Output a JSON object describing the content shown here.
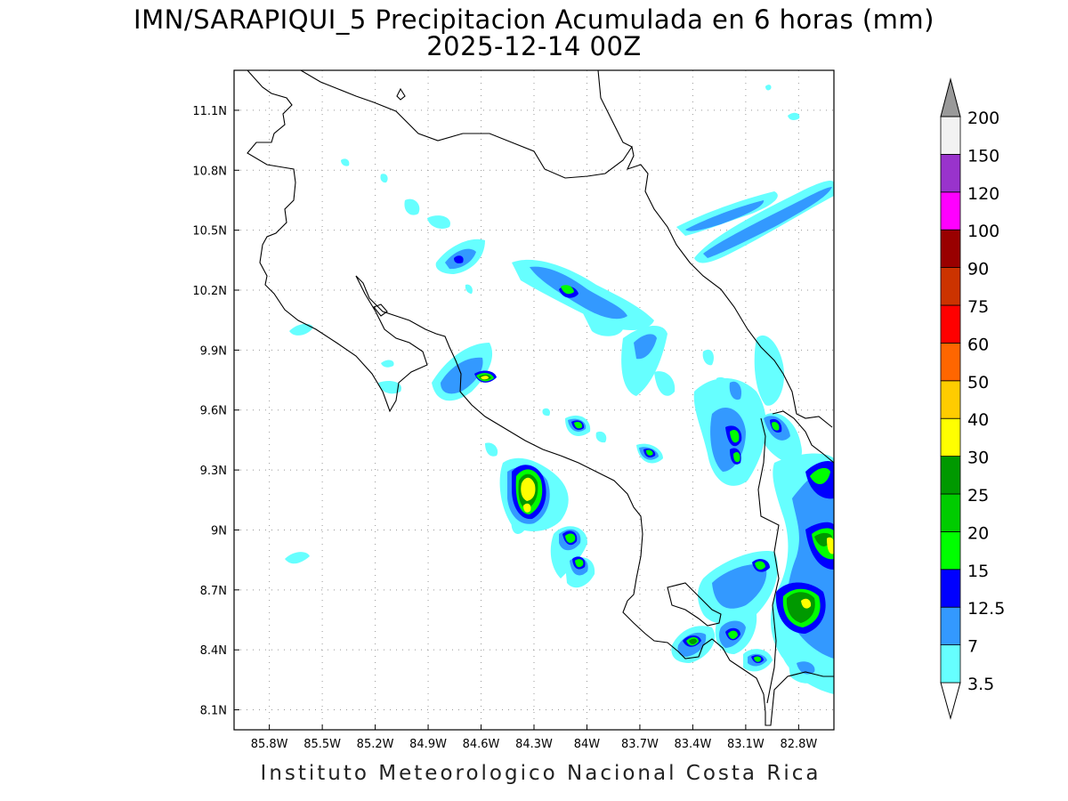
{
  "title": {
    "line1": "IMN/SARAPIQUI_5 Precipitacion Acumulada en 6 horas (mm)",
    "line2": "2025-12-14 00Z"
  },
  "footer": "Instituto Meteorologico Nacional Costa Rica",
  "map": {
    "lon_range": [
      -86.0,
      -82.6
    ],
    "lat_range": [
      8.0,
      11.3
    ],
    "x_ticks": [
      {
        "value": -85.8,
        "label": "85.8W"
      },
      {
        "value": -85.5,
        "label": "85.5W"
      },
      {
        "value": -85.2,
        "label": "85.2W"
      },
      {
        "value": -84.9,
        "label": "84.9W"
      },
      {
        "value": -84.6,
        "label": "84.6W"
      },
      {
        "value": -84.3,
        "label": "84.3W"
      },
      {
        "value": -84.0,
        "label": "84W"
      },
      {
        "value": -83.7,
        "label": "83.7W"
      },
      {
        "value": -83.4,
        "label": "83.4W"
      },
      {
        "value": -83.1,
        "label": "83.1W"
      },
      {
        "value": -82.8,
        "label": "82.8W"
      }
    ],
    "y_ticks": [
      {
        "value": 8.1,
        "label": "8.1N"
      },
      {
        "value": 8.4,
        "label": "8.4N"
      },
      {
        "value": 8.7,
        "label": "8.7N"
      },
      {
        "value": 9.0,
        "label": "9N"
      },
      {
        "value": 9.3,
        "label": "9.3N"
      },
      {
        "value": 9.6,
        "label": "9.6N"
      },
      {
        "value": 9.9,
        "label": "9.9N"
      },
      {
        "value": 10.2,
        "label": "10.2N"
      },
      {
        "value": 10.5,
        "label": "10.5N"
      },
      {
        "value": 10.8,
        "label": "10.8N"
      },
      {
        "value": 11.1,
        "label": "11.1N"
      }
    ],
    "grid": "dotted"
  },
  "colorbar": {
    "units": "mm",
    "bins": [
      {
        "label": "3.5",
        "color": "#66ffff"
      },
      {
        "label": "7",
        "color": "#3399ff"
      },
      {
        "label": "12.5",
        "color": "#0000ff"
      },
      {
        "label": "15",
        "color": "#00ff00"
      },
      {
        "label": "20",
        "color": "#00cc00"
      },
      {
        "label": "25",
        "color": "#009900"
      },
      {
        "label": "30",
        "color": "#ffff00"
      },
      {
        "label": "40",
        "color": "#ffcc00"
      },
      {
        "label": "50",
        "color": "#ff6600"
      },
      {
        "label": "60",
        "color": "#ff0000"
      },
      {
        "label": "75",
        "color": "#cc3300"
      },
      {
        "label": "90",
        "color": "#990000"
      },
      {
        "label": "100",
        "color": "#ff00ff"
      },
      {
        "label": "120",
        "color": "#9933cc"
      },
      {
        "label": "150",
        "color": "#f2f2f2"
      },
      {
        "label": "200",
        "color": "#999999"
      }
    ]
  },
  "precip_cells": [
    {
      "lon": -84.63,
      "lat": 10.38,
      "rx": 0.1,
      "ry": 0.07,
      "angle": -30,
      "level": 1
    },
    {
      "lon": -84.0,
      "lat": 10.22,
      "rx": 0.33,
      "ry": 0.05,
      "angle": 25,
      "level": 1
    },
    {
      "lon": -84.01,
      "lat": 10.19,
      "rx": 0.07,
      "ry": 0.04,
      "angle": 20,
      "level": 2
    },
    {
      "lon": -83.6,
      "lat": 9.95,
      "rx": 0.3,
      "ry": 0.07,
      "angle": 45,
      "level": 0
    },
    {
      "lon": -83.62,
      "lat": 10.06,
      "rx": 0.18,
      "ry": 0.06,
      "angle": 30,
      "level": 1
    },
    {
      "lon": -84.6,
      "lat": 9.83,
      "rx": 0.14,
      "ry": 0.07,
      "angle": -40,
      "level": 1
    },
    {
      "lon": -84.57,
      "lat": 9.76,
      "rx": 0.08,
      "ry": 0.03,
      "angle": -20,
      "level": 3
    },
    {
      "lon": -85.1,
      "lat": 9.72,
      "rx": 0.06,
      "ry": 0.03,
      "angle": -10,
      "level": 1
    },
    {
      "lon": -84.3,
      "lat": 9.22,
      "rx": 0.13,
      "ry": 0.18,
      "angle": 10,
      "level": 1
    },
    {
      "lon": -84.3,
      "lat": 9.22,
      "rx": 0.08,
      "ry": 0.12,
      "angle": 10,
      "level": 4
    },
    {
      "lon": -84.29,
      "lat": 9.24,
      "rx": 0.05,
      "ry": 0.07,
      "angle": 10,
      "level": 6
    },
    {
      "lon": -84.01,
      "lat": 9.52,
      "rx": 0.05,
      "ry": 0.03,
      "angle": 0,
      "level": 3
    },
    {
      "lon": -84.03,
      "lat": 8.95,
      "rx": 0.06,
      "ry": 0.06,
      "angle": 0,
      "level": 4
    },
    {
      "lon": -83.98,
      "lat": 8.82,
      "rx": 0.05,
      "ry": 0.05,
      "angle": 0,
      "level": 3
    },
    {
      "lon": -83.55,
      "lat": 9.39,
      "rx": 0.07,
      "ry": 0.05,
      "angle": 0,
      "level": 2
    },
    {
      "lon": -83.0,
      "lat": 9.5,
      "rx": 0.18,
      "ry": 0.1,
      "angle": -60,
      "level": 1
    },
    {
      "lon": -82.98,
      "lat": 9.48,
      "rx": 0.06,
      "ry": 0.04,
      "angle": -60,
      "level": 3
    },
    {
      "lon": -82.75,
      "lat": 9.5,
      "rx": 0.08,
      "ry": 0.05,
      "angle": -60,
      "level": 3
    },
    {
      "lon": -83.05,
      "lat": 10.58,
      "rx": 0.42,
      "ry": 0.07,
      "angle": -30,
      "level": 1
    },
    {
      "lon": -82.66,
      "lat": 9.15,
      "rx": 0.1,
      "ry": 0.25,
      "angle": 0,
      "level": 2
    },
    {
      "lon": -82.63,
      "lat": 8.92,
      "rx": 0.06,
      "ry": 0.07,
      "angle": 0,
      "level": 6
    },
    {
      "lon": -82.75,
      "lat": 8.62,
      "rx": 0.12,
      "ry": 0.08,
      "angle": 0,
      "level": 4
    },
    {
      "lon": -82.72,
      "lat": 8.63,
      "rx": 0.04,
      "ry": 0.03,
      "angle": 0,
      "level": 6
    },
    {
      "lon": -83.32,
      "lat": 8.44,
      "rx": 0.07,
      "ry": 0.04,
      "angle": -30,
      "level": 4
    },
    {
      "lon": -83.09,
      "lat": 8.48,
      "rx": 0.05,
      "ry": 0.05,
      "angle": 0,
      "level": 4
    },
    {
      "lon": -82.92,
      "lat": 8.35,
      "rx": 0.04,
      "ry": 0.03,
      "angle": 0,
      "level": 3
    },
    {
      "lon": -82.95,
      "lat": 8.8,
      "rx": 0.06,
      "ry": 0.04,
      "angle": -30,
      "level": 3
    },
    {
      "lon": -85.72,
      "lat": 8.85,
      "rx": 0.06,
      "ry": 0.03,
      "angle": -30,
      "level": 0
    }
  ]
}
